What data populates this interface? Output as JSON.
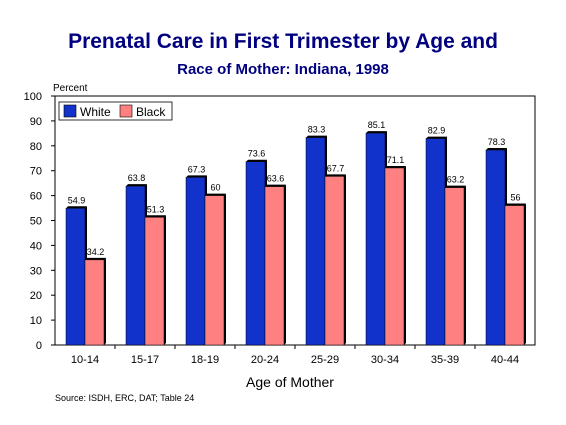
{
  "chart_data": {
    "type": "bar",
    "title": "Prenatal Care in First Trimester by Age and",
    "subtitle": "Race of Mother:  Indiana, 1998",
    "ylabel": "Percent",
    "xlabel": "Age of Mother",
    "ylim": [
      0,
      100
    ],
    "yticks": [
      0,
      10,
      20,
      30,
      40,
      50,
      60,
      70,
      80,
      90,
      100
    ],
    "grid": false,
    "legend_position": "top-left",
    "categories": [
      "10-14",
      "15-17",
      "18-19",
      "20-24",
      "25-29",
      "30-34",
      "35-39",
      "40-44"
    ],
    "series": [
      {
        "name": "White",
        "color": "#1133cc",
        "values": [
          54.9,
          63.8,
          67.3,
          73.6,
          83.3,
          85.1,
          82.9,
          78.3
        ]
      },
      {
        "name": "Black",
        "color": "#ff8080",
        "values": [
          34.2,
          51.3,
          60,
          63.6,
          67.7,
          71.1,
          63.2,
          56
        ]
      }
    ],
    "data_labels": [
      [
        "54.9",
        "63.8",
        "67.3",
        "73.6",
        "83.3",
        "85.1",
        "82.9",
        "78.3"
      ],
      [
        "34.2",
        "51.3",
        "60",
        "63.6",
        "67.7",
        "71.1",
        "63.2",
        "56"
      ]
    ],
    "source": "Source:  ISDH, ERC, DAT; Table 24"
  }
}
